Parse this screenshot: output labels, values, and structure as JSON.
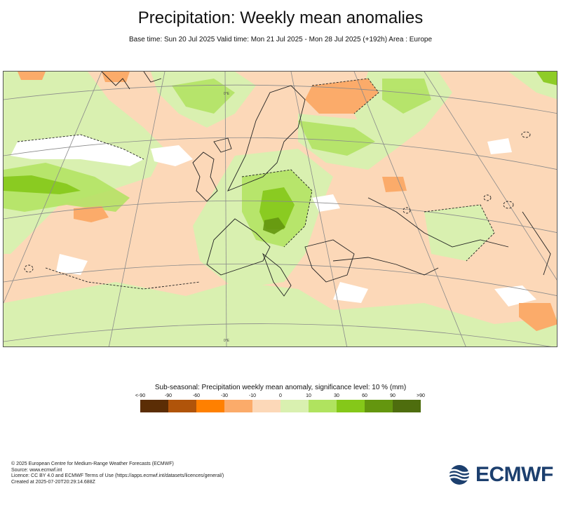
{
  "header": {
    "title": "Precipitation: Weekly mean anomalies",
    "subtitle": "Base time: Sun 20 Jul 2025 Valid time: Mon 21 Jul 2025 - Mon 28 Jul 2025 (+192h) Area : Europe"
  },
  "map": {
    "region": "Europe",
    "longitude_labels": [
      "0°E",
      "0°E"
    ]
  },
  "legend": {
    "title": "Sub-seasonal: Precipitation weekly mean anomaly, significance level: 10 % (mm)",
    "ticks": [
      "<-90",
      "-90",
      "-60",
      "-30",
      "-10",
      "0",
      "10",
      "30",
      "60",
      "90",
      ">90"
    ],
    "colors": [
      "#5b2d05",
      "#b0540a",
      "#ff8000",
      "#fbab6a",
      "#fcd8b8",
      "#d9f0b0",
      "#b0e35f",
      "#85c819",
      "#64960f",
      "#4e6d0e"
    ]
  },
  "footer": {
    "lines": [
      "© 2025 European Centre for Medium-Range Weather Forecasts (ECMWF)",
      "Source: www.ecmwf.int",
      "Licence: CC BY 4.0 and ECMWF Terms of Use (https://apps.ecmwf.int/datasets/licences/general/)",
      "Created at 2025-07-20T20:29:14.688Z"
    ]
  },
  "logo": {
    "text": "ECMWF",
    "color": "#1c3f6e"
  }
}
